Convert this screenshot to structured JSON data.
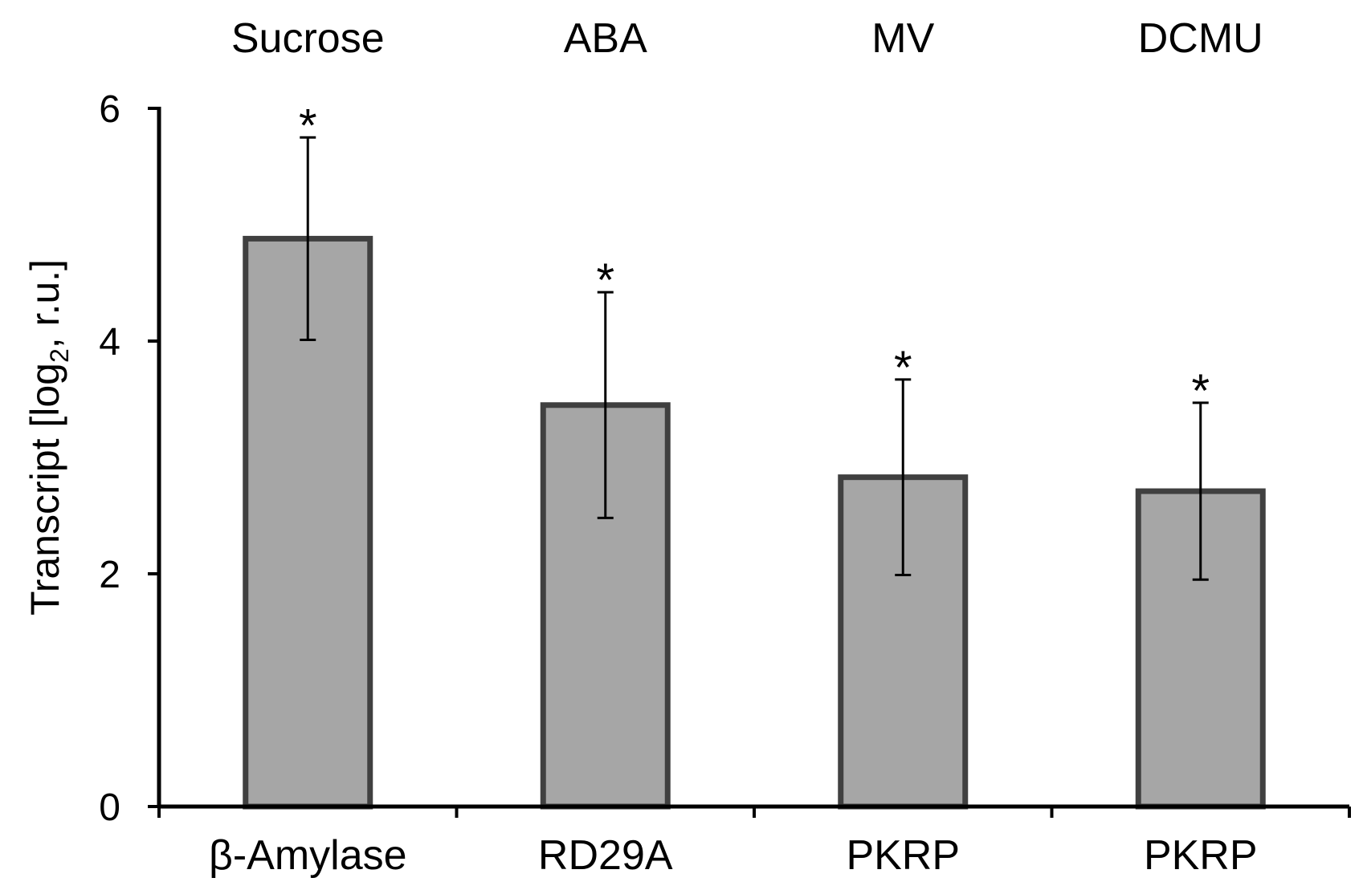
{
  "chart_data": {
    "type": "bar",
    "title": "",
    "ylabel_main": "Transcript [log",
    "ylabel_sub": "2",
    "ylabel_tail": ", r.u.]",
    "ylim": [
      0,
      6
    ],
    "yticks": [
      "0",
      "2",
      "4",
      "6"
    ],
    "treatments": [
      "Sucrose",
      "ABA",
      "MV",
      "DCMU"
    ],
    "categories": [
      "β-Amylase",
      "RD29A",
      "PKRP",
      "PKRP"
    ],
    "values": [
      4.88,
      3.45,
      2.83,
      2.71
    ],
    "errors": [
      0.87,
      0.97,
      0.84,
      0.76
    ],
    "significance": [
      "*",
      "*",
      "*",
      "*"
    ],
    "bar_color": "#a6a6a6",
    "bar_edge_color": "#404040",
    "grid": false
  }
}
